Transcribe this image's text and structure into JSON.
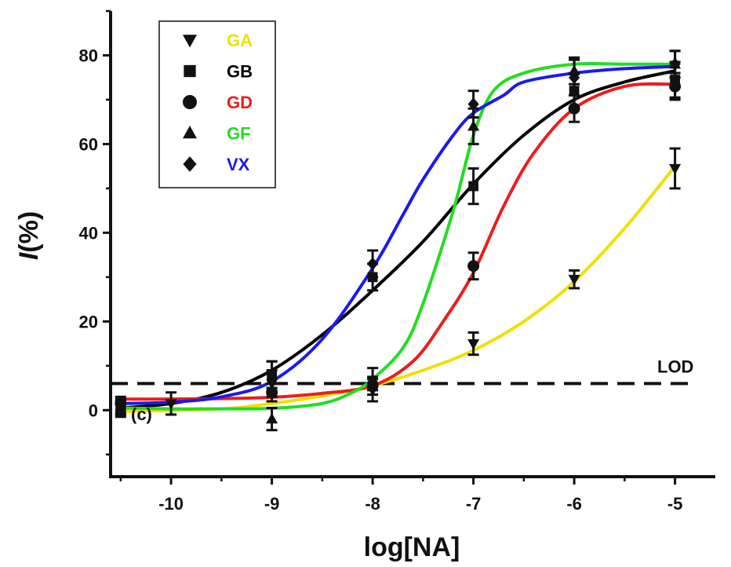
{
  "chart_data": {
    "type": "line",
    "xlabel": "log[NA]",
    "ylabel": "I(%)",
    "xlim": [
      -10.6,
      -4.6
    ],
    "ylim": [
      -15,
      90
    ],
    "xticks": [
      -10,
      -9,
      -8,
      -7,
      -6,
      -5
    ],
    "xtick_labels": [
      "-10",
      "-9",
      "-8",
      "-7",
      "-6",
      "-5"
    ],
    "yticks": [
      0,
      20,
      40,
      60,
      80
    ],
    "ytick_labels": [
      "0",
      "20",
      "40",
      "60",
      "80"
    ],
    "grid": false,
    "legend_position": "top-left",
    "lod": {
      "label": "LOD",
      "y": 6
    },
    "control_label": "(c)",
    "series": [
      {
        "name": "GA",
        "color": "#f0e000",
        "marker": "triangle-down",
        "points": [
          {
            "x": -10.5,
            "y": 0.5,
            "err": 1.5
          },
          {
            "x": -10,
            "y": 1.5,
            "err": 2.5
          },
          {
            "x": -9,
            "y": 6,
            "err": 3
          },
          {
            "x": -8,
            "y": 4.5,
            "err": 2.5
          },
          {
            "x": -7,
            "y": 15,
            "err": 2.5
          },
          {
            "x": -6,
            "y": 29.5,
            "err": 2
          },
          {
            "x": -5,
            "y": 54.5,
            "err": 4.5
          }
        ],
        "curve": [
          [
            -10.5,
            -0.3
          ],
          [
            -9.5,
            0.3
          ],
          [
            -9,
            1.5
          ],
          [
            -8.5,
            3.2
          ],
          [
            -8,
            5.5
          ],
          [
            -7.5,
            9
          ],
          [
            -7,
            13.5
          ],
          [
            -6.5,
            20
          ],
          [
            -6,
            29
          ],
          [
            -5.5,
            41
          ],
          [
            -5,
            55
          ]
        ]
      },
      {
        "name": "GB",
        "color": "#000000",
        "marker": "square",
        "points": [
          {
            "x": -10.5,
            "y": 1,
            "err": 1.5
          },
          {
            "x": -9,
            "y": 8,
            "err": 3
          },
          {
            "x": -8,
            "y": 30,
            "err": 3
          },
          {
            "x": -7,
            "y": 50.5,
            "err": 4
          },
          {
            "x": -6,
            "y": 72,
            "err": 4
          },
          {
            "x": -5,
            "y": 74.5,
            "err": 4
          }
        ],
        "curve": [
          [
            -10.5,
            0.5
          ],
          [
            -10,
            1.5
          ],
          [
            -9.5,
            4
          ],
          [
            -9,
            9
          ],
          [
            -8.5,
            17
          ],
          [
            -8,
            27
          ],
          [
            -7.5,
            38
          ],
          [
            -7,
            51
          ],
          [
            -6.5,
            62
          ],
          [
            -6,
            70
          ],
          [
            -5.5,
            74
          ],
          [
            -5,
            76.5
          ]
        ]
      },
      {
        "name": "GD",
        "color": "#ee1c1c",
        "marker": "circle",
        "points": [
          {
            "x": -10.5,
            "y": 1.5,
            "err": 1.5
          },
          {
            "x": -9,
            "y": 4,
            "err": 2
          },
          {
            "x": -8,
            "y": 5.5,
            "err": 2
          },
          {
            "x": -7,
            "y": 32.5,
            "err": 3
          },
          {
            "x": -6,
            "y": 68,
            "err": 3
          },
          {
            "x": -5,
            "y": 73,
            "err": 3
          }
        ],
        "curve": [
          [
            -10.5,
            2.5
          ],
          [
            -10,
            2.5
          ],
          [
            -9.5,
            2.6
          ],
          [
            -9,
            2.9
          ],
          [
            -8.5,
            3.8
          ],
          [
            -8,
            5.5
          ],
          [
            -7.6,
            11
          ],
          [
            -7.3,
            20
          ],
          [
            -7,
            31
          ],
          [
            -6.7,
            46
          ],
          [
            -6.4,
            58
          ],
          [
            -6,
            68
          ],
          [
            -5.5,
            73
          ],
          [
            -5,
            73.5
          ]
        ]
      },
      {
        "name": "GF",
        "color": "#22dd22",
        "marker": "triangle-up",
        "points": [
          {
            "x": -10.5,
            "y": 0,
            "err": 1.5
          },
          {
            "x": -9,
            "y": -2,
            "err": 2.5
          },
          {
            "x": -8,
            "y": 7,
            "err": 2.5
          },
          {
            "x": -7,
            "y": 64,
            "err": 4
          },
          {
            "x": -6,
            "y": 76.5,
            "err": 3
          },
          {
            "x": -5,
            "y": 78,
            "err": 3
          }
        ],
        "curve": [
          [
            -10.5,
            0.5
          ],
          [
            -10,
            0.3
          ],
          [
            -9.5,
            0.3
          ],
          [
            -9,
            0.4
          ],
          [
            -8.5,
            1.5
          ],
          [
            -8.2,
            4
          ],
          [
            -8,
            7
          ],
          [
            -7.7,
            14
          ],
          [
            -7.5,
            24
          ],
          [
            -7.2,
            45
          ],
          [
            -7,
            62
          ],
          [
            -6.8,
            72
          ],
          [
            -6.5,
            76
          ],
          [
            -6,
            78
          ],
          [
            -5.5,
            78
          ],
          [
            -5,
            78
          ]
        ]
      },
      {
        "name": "VX",
        "color": "#1a1aee",
        "marker": "diamond",
        "points": [
          {
            "x": -10.5,
            "y": 0.5,
            "err": 1.5
          },
          {
            "x": -9,
            "y": 8,
            "err": 3
          },
          {
            "x": -8,
            "y": 33,
            "err": 3
          },
          {
            "x": -7,
            "y": 69,
            "err": 3
          },
          {
            "x": -6,
            "y": 75,
            "err": 4
          },
          {
            "x": -5,
            "y": 78,
            "err": 3
          }
        ],
        "curve": [
          [
            -10.5,
            1.5
          ],
          [
            -10,
            1.8
          ],
          [
            -9.5,
            3
          ],
          [
            -9,
            6.5
          ],
          [
            -8.5,
            16
          ],
          [
            -8,
            32
          ],
          [
            -7.7,
            44
          ],
          [
            -7.5,
            52
          ],
          [
            -7.2,
            62
          ],
          [
            -7,
            67
          ],
          [
            -6.7,
            71
          ],
          [
            -6.5,
            74
          ],
          [
            -6,
            76
          ],
          [
            -5.5,
            77
          ],
          [
            -5,
            77.5
          ]
        ]
      }
    ]
  }
}
